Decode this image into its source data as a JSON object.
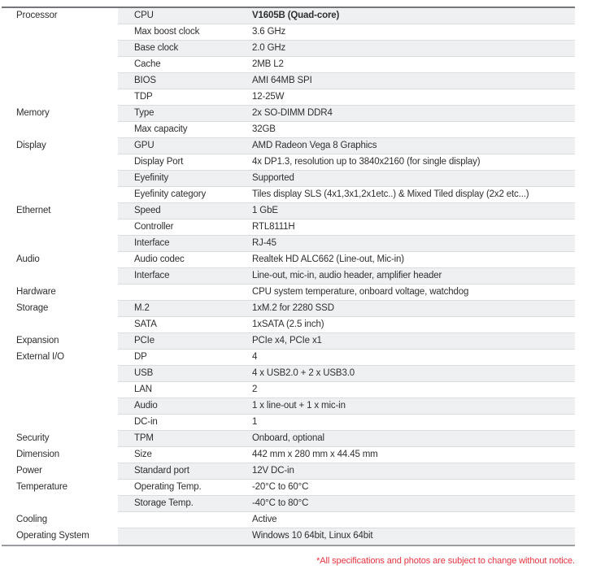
{
  "colors": {
    "shaded_row": "#eff0f1",
    "separator": "#dbdcdd",
    "top_border": "#75767a",
    "bottom_border": "#9b9c9f",
    "text": "#2f2f31",
    "footnote_red": "#e8323e"
  },
  "footnote": "*All specifications and photos are subject to change without notice.",
  "spec_table": {
    "rows": [
      {
        "category": "Processor",
        "attribute": "CPU",
        "value": "V1605B (Quad-core)",
        "bold": true
      },
      {
        "category": "",
        "attribute": "Max boost clock",
        "value": "3.6 GHz"
      },
      {
        "category": "",
        "attribute": "Base clock",
        "value": "2.0 GHz"
      },
      {
        "category": "",
        "attribute": "Cache",
        "value": "2MB L2"
      },
      {
        "category": "",
        "attribute": "BIOS",
        "value": "AMI 64MB SPI"
      },
      {
        "category": "",
        "attribute": "TDP",
        "value": "12-25W"
      },
      {
        "category": "Memory",
        "attribute": "Type",
        "value": "2x SO-DIMM DDR4"
      },
      {
        "category": "",
        "attribute": "Max capacity",
        "value": "32GB"
      },
      {
        "category": "Display",
        "attribute": "GPU",
        "value": "AMD Radeon Vega 8 Graphics"
      },
      {
        "category": "",
        "attribute": "Display Port",
        "value": "4x DP1.3, resolution up to 3840x2160 (for single display)"
      },
      {
        "category": "",
        "attribute": "Eyefinity",
        "value": "Supported"
      },
      {
        "category": "",
        "attribute": "Eyefinity category",
        "value": "Tiles display SLS (4x1,3x1,2x1etc..) & Mixed Tiled display (2x2 etc...)"
      },
      {
        "category": "Ethernet",
        "attribute": "Speed",
        "value": "1 GbE"
      },
      {
        "category": "",
        "attribute": "Controller",
        "value": "RTL8111H"
      },
      {
        "category": "",
        "attribute": "Interface",
        "value": "RJ-45"
      },
      {
        "category": "Audio",
        "attribute": "Audio codec",
        "value": "Realtek HD ALC662 (Line-out, Mic-in)"
      },
      {
        "category": "",
        "attribute": "Interface",
        "value": "Line-out, mic-in, audio header, amplifier header"
      },
      {
        "category": "Hardware",
        "attribute": "",
        "value": "CPU system temperature, onboard voltage, watchdog"
      },
      {
        "category": "Storage",
        "attribute": "M.2",
        "value": "1xM.2 for 2280 SSD"
      },
      {
        "category": "",
        "attribute": "SATA",
        "value": "1xSATA (2.5 inch)"
      },
      {
        "category": "Expansion",
        "attribute": "PCIe",
        "value": "PCIe x4, PCIe x1"
      },
      {
        "category": "External I/O",
        "attribute": "DP",
        "value": "4"
      },
      {
        "category": "",
        "attribute": "USB",
        "value": "4 x USB2.0 + 2 x USB3.0"
      },
      {
        "category": "",
        "attribute": "LAN",
        "value": "2"
      },
      {
        "category": "",
        "attribute": "Audio",
        "value": "1 x line-out + 1 x mic-in"
      },
      {
        "category": "",
        "attribute": "DC-in",
        "value": "1"
      },
      {
        "category": "Security",
        "attribute": "TPM",
        "value": "Onboard, optional"
      },
      {
        "category": "Dimension",
        "attribute": "Size",
        "value": "442 mm x 280 mm x 44.45 mm"
      },
      {
        "category": "Power",
        "attribute": "Standard port",
        "value": "12V DC-in"
      },
      {
        "category": "Temperature",
        "attribute": "Operating Temp.",
        "value": "-20°C to 60°C"
      },
      {
        "category": "",
        "attribute": "Storage Temp.",
        "value": "-40°C to 80°C"
      },
      {
        "category": "Cooling",
        "attribute": "",
        "value": "Active"
      },
      {
        "category": "Operating System",
        "attribute": "",
        "value": "Windows 10 64bit, Linux 64bit"
      }
    ]
  }
}
